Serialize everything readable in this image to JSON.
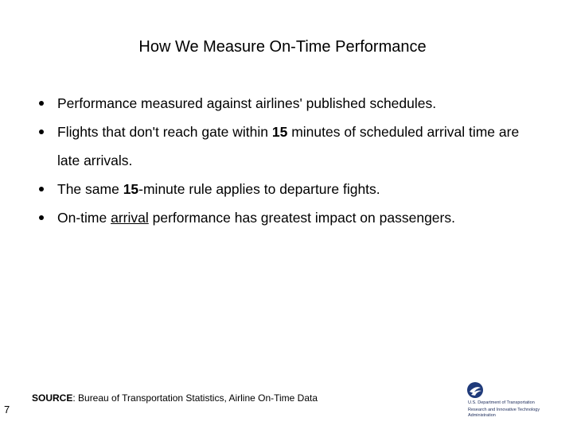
{
  "title": "How We Measure On-Time Performance",
  "bullets": [
    {
      "runs": [
        {
          "text": "Performance measured against airlines' published schedules."
        }
      ]
    },
    {
      "runs": [
        {
          "text": "Flights that don't reach gate within "
        },
        {
          "text": "15",
          "bold": true
        },
        {
          "text": " minutes of scheduled arrival time are late arrivals."
        }
      ]
    },
    {
      "runs": [
        {
          "text": "The same "
        },
        {
          "text": "15",
          "bold": true
        },
        {
          "text": "-minute rule applies to departure fights."
        }
      ]
    },
    {
      "runs": [
        {
          "text": "On-time "
        },
        {
          "text": "arrival",
          "underline": true
        },
        {
          "text": " performance has greatest impact on passengers."
        }
      ]
    }
  ],
  "source": {
    "label": "SOURCE",
    "text": ": Bureau of Transportation Statistics, Airline On-Time Data"
  },
  "page_number": "7",
  "logo": {
    "line1": "U.S. Department of Transportation",
    "line2": "Research and Innovative Technology Administration"
  }
}
